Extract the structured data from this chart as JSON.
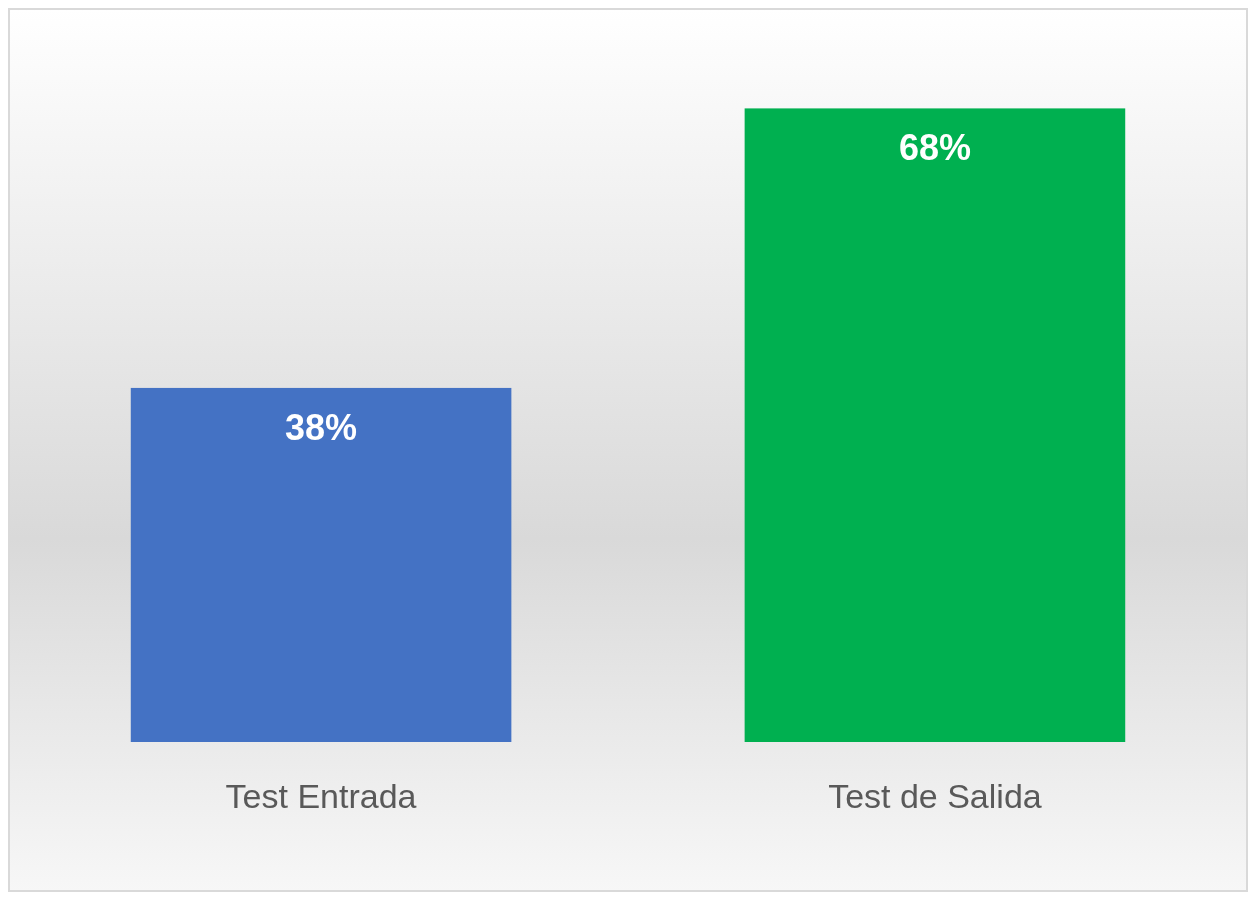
{
  "chart_data": {
    "type": "bar",
    "categories": [
      "Test Entrada",
      "Test de Salida"
    ],
    "values": [
      38,
      68
    ],
    "colors": [
      "#4472c4",
      "#00b050"
    ],
    "value_labels": [
      "38%",
      "68%"
    ],
    "grid": false
  }
}
